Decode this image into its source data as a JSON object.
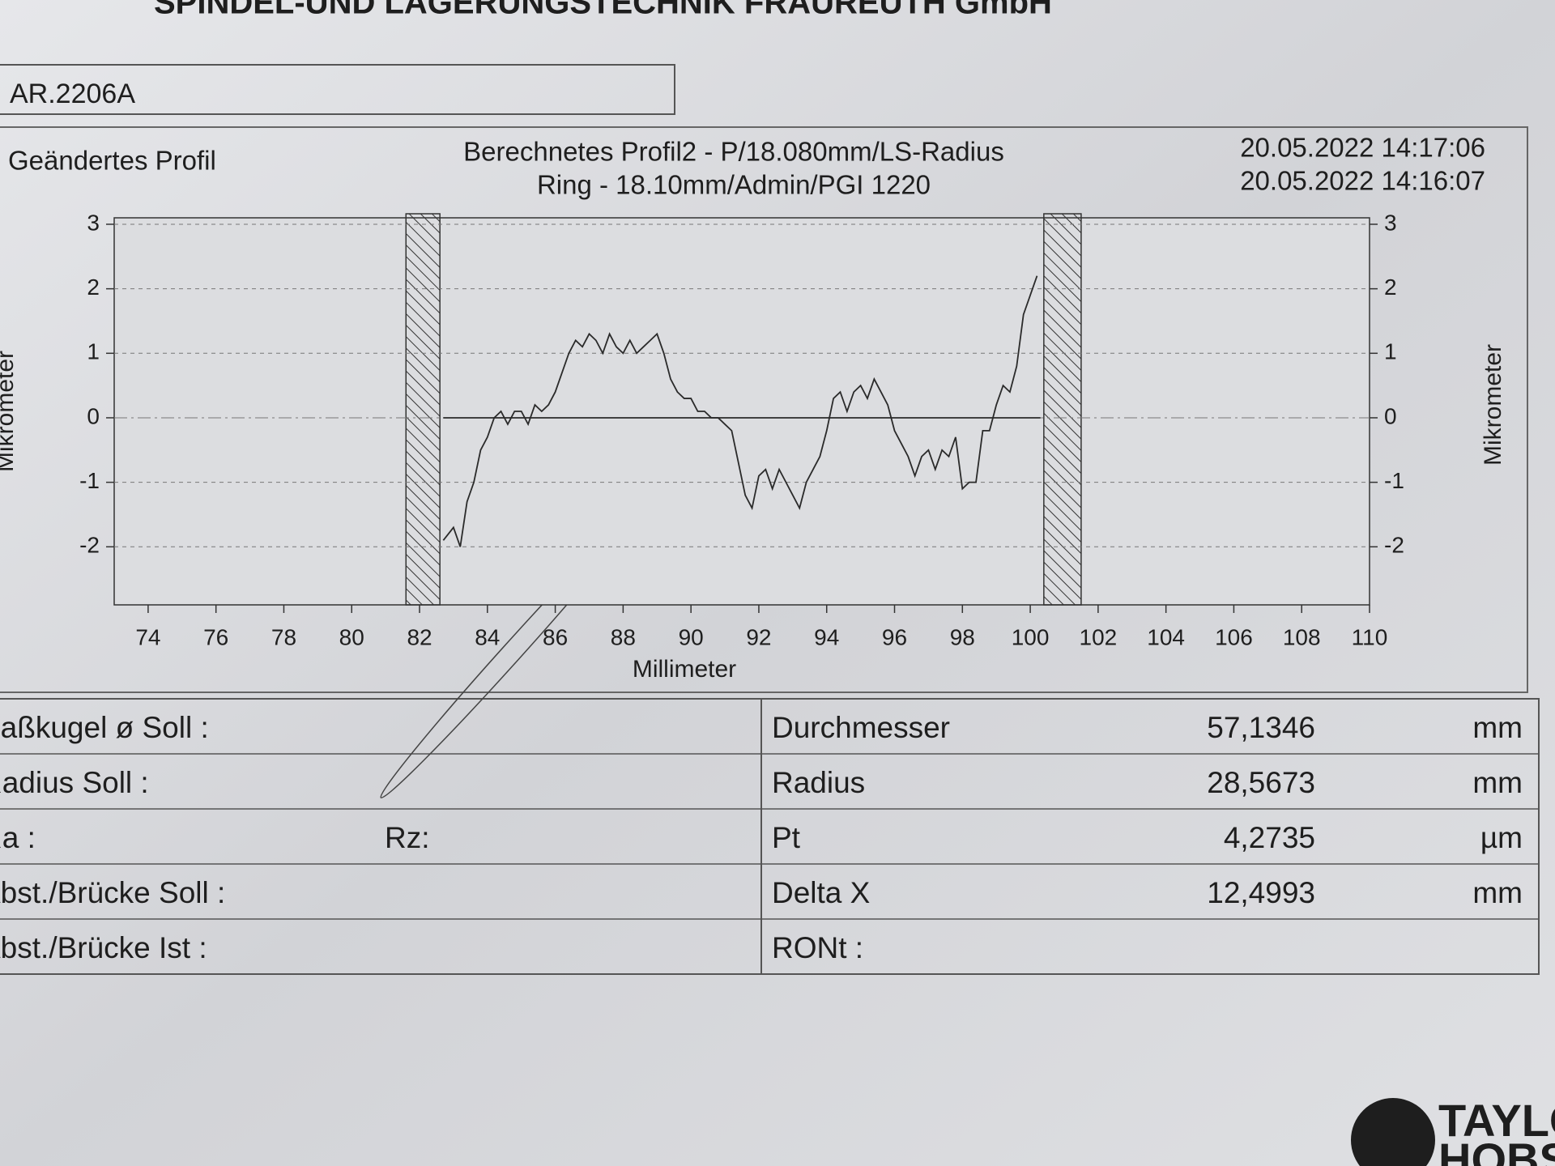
{
  "header": {
    "company": "SPINDEL-UND LAGERUNGSTECHNIK FRAUREUTH GmbH",
    "part_number": "AR.2206A"
  },
  "chart_data": {
    "type": "line",
    "label_left": "Geändertes Profil",
    "title": "Berechnetes Profil2 - P/18.080mm/LS-Radius",
    "subtitle": "Ring - 18.10mm/Admin/PGI 1220",
    "dates": [
      "20.05.2022 14:17:06",
      "20.05.2022 14:16:07"
    ],
    "xlabel": "Millimeter",
    "ylabel": "Mikrometer",
    "y2label": "Mikrometer",
    "xlim": [
      73,
      110
    ],
    "xticks": [
      74,
      76,
      78,
      80,
      82,
      84,
      86,
      88,
      90,
      92,
      94,
      96,
      98,
      100,
      102,
      104,
      106,
      108,
      110
    ],
    "ylim": [
      -2.9,
      3.1
    ],
    "yticks": [
      -2,
      -1,
      0,
      1,
      2,
      3
    ],
    "y2lim": [
      -2.9,
      3.1
    ],
    "y2ticks": [
      -2,
      -1,
      0,
      1,
      2,
      3
    ],
    "grid": true,
    "hatched_regions": [
      [
        81.6,
        82.6
      ],
      [
        100.4,
        101.5
      ]
    ],
    "series": [
      {
        "color": "#2a2a2a",
        "x": [
          82.7,
          83.0,
          83.2,
          83.4,
          83.6,
          83.8,
          84.0,
          84.2,
          84.4,
          84.6,
          84.8,
          85.0,
          85.2,
          85.4,
          85.6,
          85.8,
          86.0,
          86.2,
          86.4,
          86.6,
          86.8,
          87.0,
          87.2,
          87.4,
          87.6,
          87.8,
          88.0,
          88.2,
          88.4,
          88.6,
          88.8,
          89.0,
          89.2,
          89.4,
          89.6,
          89.8,
          90.0,
          90.2,
          90.4,
          90.6,
          90.8,
          91.0,
          91.2,
          91.4,
          91.6,
          91.8,
          92.0,
          92.2,
          92.4,
          92.6,
          92.8,
          93.0,
          93.2,
          93.4,
          93.6,
          93.8,
          94.0,
          94.2,
          94.4,
          94.6,
          94.8,
          95.0,
          95.2,
          95.4,
          95.6,
          95.8,
          96.0,
          96.2,
          96.4,
          96.6,
          96.8,
          97.0,
          97.2,
          97.4,
          97.6,
          97.8,
          98.0,
          98.2,
          98.4,
          98.6,
          98.8,
          99.0,
          99.2,
          99.4,
          99.6,
          99.8,
          100.0,
          100.2
        ],
        "values": [
          -1.9,
          -1.7,
          -2.0,
          -1.3,
          -1.0,
          -0.5,
          -0.3,
          0.0,
          0.1,
          -0.1,
          0.1,
          0.1,
          -0.1,
          0.2,
          0.1,
          0.2,
          0.4,
          0.7,
          1.0,
          1.2,
          1.1,
          1.3,
          1.2,
          1.0,
          1.3,
          1.1,
          1.0,
          1.2,
          1.0,
          1.1,
          1.2,
          1.3,
          1.0,
          0.6,
          0.4,
          0.3,
          0.3,
          0.1,
          0.1,
          0.0,
          0.0,
          -0.1,
          -0.2,
          -0.7,
          -1.2,
          -1.4,
          -0.9,
          -0.8,
          -1.1,
          -0.8,
          -1.0,
          -1.2,
          -1.4,
          -1.0,
          -0.8,
          -0.6,
          -0.2,
          0.3,
          0.4,
          0.1,
          0.4,
          0.5,
          0.3,
          0.6,
          0.4,
          0.2,
          -0.2,
          -0.4,
          -0.6,
          -0.9,
          -0.6,
          -0.5,
          -0.8,
          -0.5,
          -0.6,
          -0.3,
          -1.1,
          -1.0,
          -1.0,
          -0.2,
          -0.2,
          0.2,
          0.5,
          0.4,
          0.8,
          1.6,
          1.9,
          2.2
        ]
      },
      {
        "color": "#2a2a2a",
        "x": [
          82.7,
          100.3
        ],
        "values": [
          0,
          0
        ]
      }
    ]
  },
  "table": {
    "left": [
      [
        "Paßkugel ø Soll :"
      ],
      [
        "Radius Soll :"
      ],
      [
        "Ra :",
        "Rz:"
      ],
      [
        "Abst./Brücke Soll :"
      ],
      [
        "Abst./Brücke   Ist :"
      ]
    ],
    "right": [
      [
        "Durchmesser",
        "57,1346",
        "mm"
      ],
      [
        "Radius",
        "28,5673",
        "mm"
      ],
      [
        "Pt",
        "4,2735",
        "µm"
      ],
      [
        "Delta X",
        "12,4993",
        "mm"
      ],
      [
        "RONt :"
      ]
    ]
  },
  "footer": {
    "logo": [
      "TAYLOR",
      "HOBSON"
    ]
  }
}
